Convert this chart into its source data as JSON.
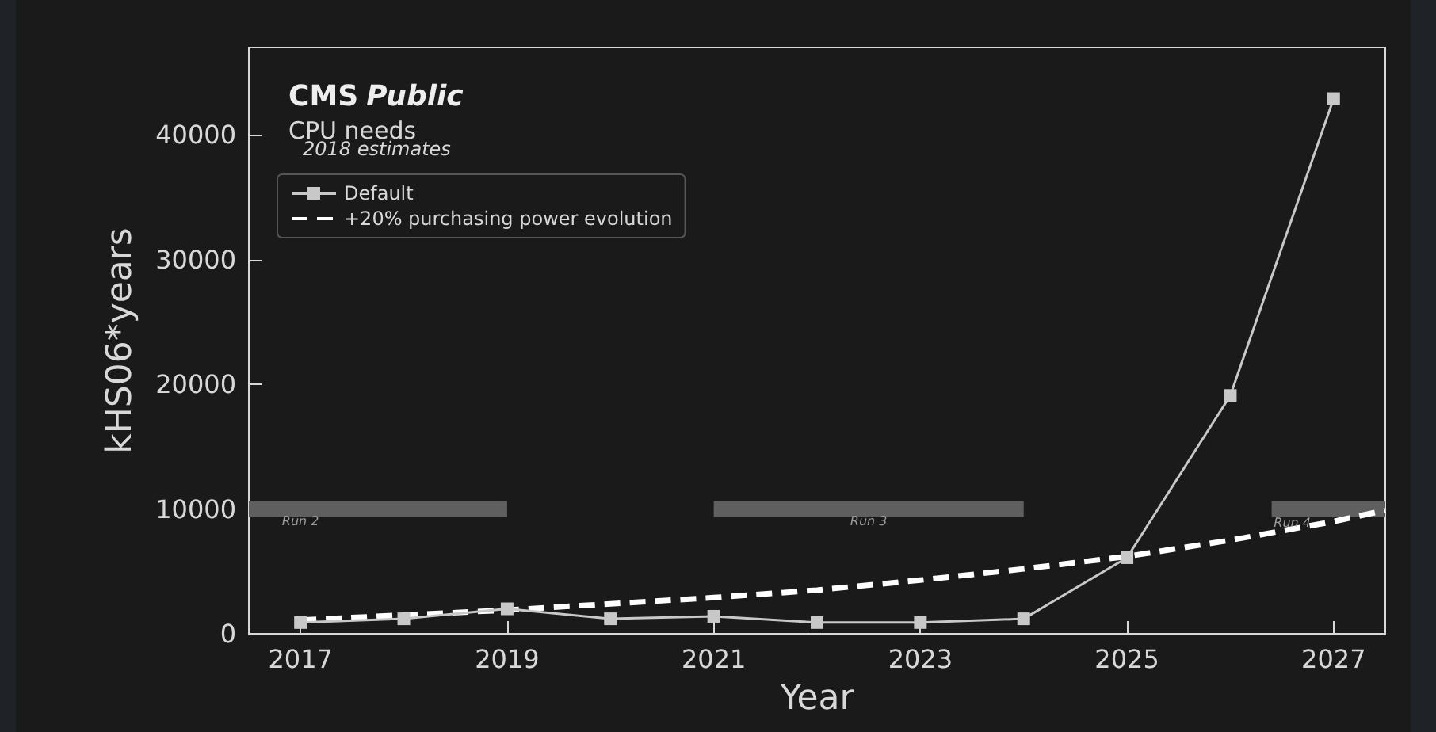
{
  "chart_data": {
    "type": "line",
    "title": "CMS Public",
    "subtitle": "CPU needs",
    "xlabel": "Year",
    "ylabel": "kHS06*years",
    "annotations": [
      "2018 estimates",
      {
        "text": "Run 2",
        "x": 2017,
        "y": 9000
      },
      {
        "text": "Run 3",
        "x": 2022.5,
        "y": 9000
      },
      {
        "text": "Run 4",
        "x": 2026.6,
        "y": 8900
      }
    ],
    "series": [
      {
        "name": "Default",
        "color": "#c8c8c8",
        "marker": "square",
        "line_style": "solid",
        "x": [
          2017,
          2018,
          2019,
          2020,
          2021,
          2022,
          2023,
          2024,
          2025,
          2026,
          2027
        ],
        "values": [
          900,
          1200,
          2000,
          1200,
          1400,
          900,
          900,
          1200,
          6100,
          19100,
          42900
        ]
      },
      {
        "name": "+20% purchasing power evolution",
        "color": "#ffffff",
        "marker": "none",
        "line_style": "dashed",
        "x": [
          2017,
          2018,
          2019,
          2020,
          2021,
          2022,
          2023,
          2024,
          2025,
          2026,
          2027,
          2027.5
        ],
        "values": [
          1100,
          1500,
          1900,
          2400,
          2900,
          3500,
          4300,
          5200,
          6200,
          7500,
          9000,
          9900
        ]
      },
      {
        "color": "#5f5f5f",
        "marker": "none",
        "line_style": "solid",
        "x": [
          2016.5,
          2019
        ],
        "values": [
          10000,
          10000
        ]
      },
      {
        "color": "#5f5f5f",
        "marker": "none",
        "line_style": "solid",
        "x": [
          2021,
          2024
        ],
        "values": [
          10000,
          10000
        ]
      },
      {
        "color": "#5f5f5f",
        "marker": "none",
        "line_style": "solid",
        "x": [
          2026.4,
          2027.5
        ],
        "values": [
          10000,
          10000
        ]
      }
    ],
    "xlim": [
      2016.5,
      2027.5
    ],
    "xticks": [
      2017,
      2019,
      2021,
      2023,
      2025,
      2027
    ],
    "ylim": [
      0,
      47000
    ],
    "yticks": [
      0,
      10000,
      20000,
      30000,
      40000
    ],
    "grid": false,
    "legend": "top left"
  }
}
